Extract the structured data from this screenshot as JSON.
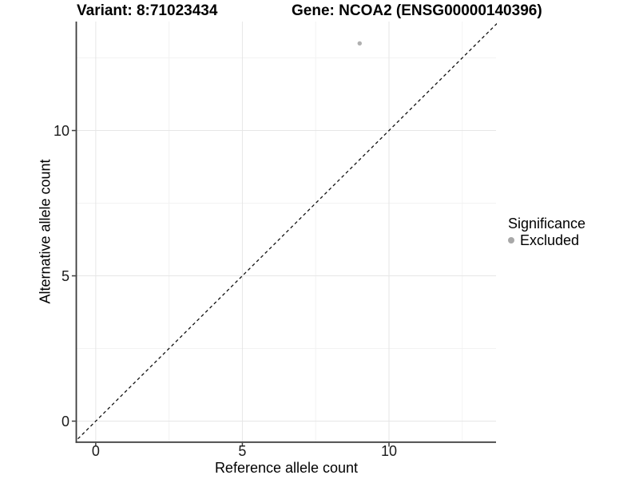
{
  "header": {
    "variant_title": "Variant: 8:71023434",
    "gene_title": "Gene: NCOA2 (ENSG00000140396)"
  },
  "chart_data": {
    "type": "scatter",
    "xlabel": "Reference allele count",
    "ylabel": "Alternative allele count",
    "xlim": [
      -0.65,
      13.65
    ],
    "ylim": [
      -0.7,
      13.75
    ],
    "x_ticks": [
      0,
      5,
      10
    ],
    "y_ticks": [
      0,
      5,
      10
    ],
    "x_minor": [
      2.5,
      7.5,
      12.5
    ],
    "y_minor": [
      2.5,
      7.5,
      12.5
    ],
    "grid": true,
    "series": [
      {
        "name": "Excluded",
        "color": "#b0b0b0",
        "points": [
          [
            9,
            13
          ]
        ]
      }
    ],
    "reference_line": {
      "kind": "identity",
      "style": "dashed",
      "color": "#111111"
    },
    "legend": {
      "title": "Significance",
      "position": "right",
      "entries": [
        {
          "label": "Excluded",
          "color": "#a8a8a8"
        }
      ]
    }
  },
  "colors": {
    "background": "#ffffff",
    "grid_major": "#e6e6e6",
    "grid_minor": "#f2f2f2",
    "axis_line": "#3c3c3c",
    "tick_label": "#1a1a1a"
  }
}
